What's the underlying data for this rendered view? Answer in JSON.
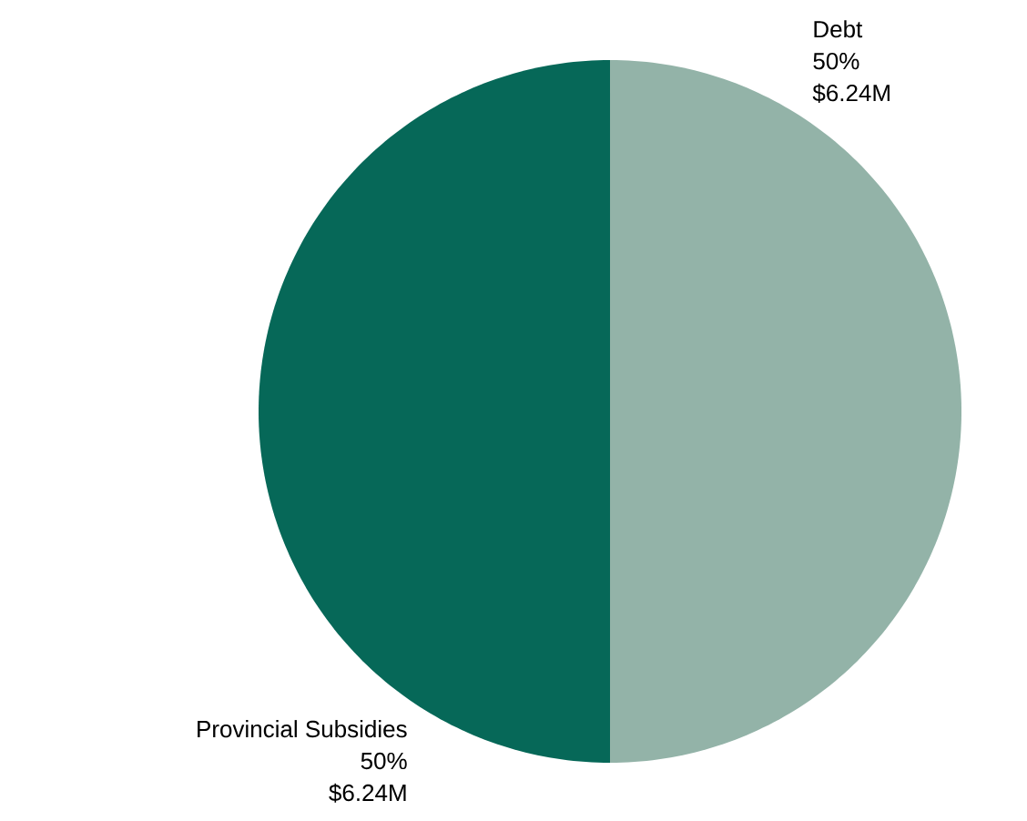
{
  "chart_data": {
    "type": "pie",
    "categories": [
      "Debt",
      "Provincial Subsidies"
    ],
    "values": [
      50,
      50
    ],
    "value_labels": [
      "50%",
      "50%"
    ],
    "colors": [
      "#93b3a8",
      "#066858"
    ],
    "annotations": [
      {
        "text": "$6.24M",
        "x": "Debt"
      },
      {
        "text": "$6.24M",
        "x": "Provincial Subsidies"
      }
    ]
  }
}
